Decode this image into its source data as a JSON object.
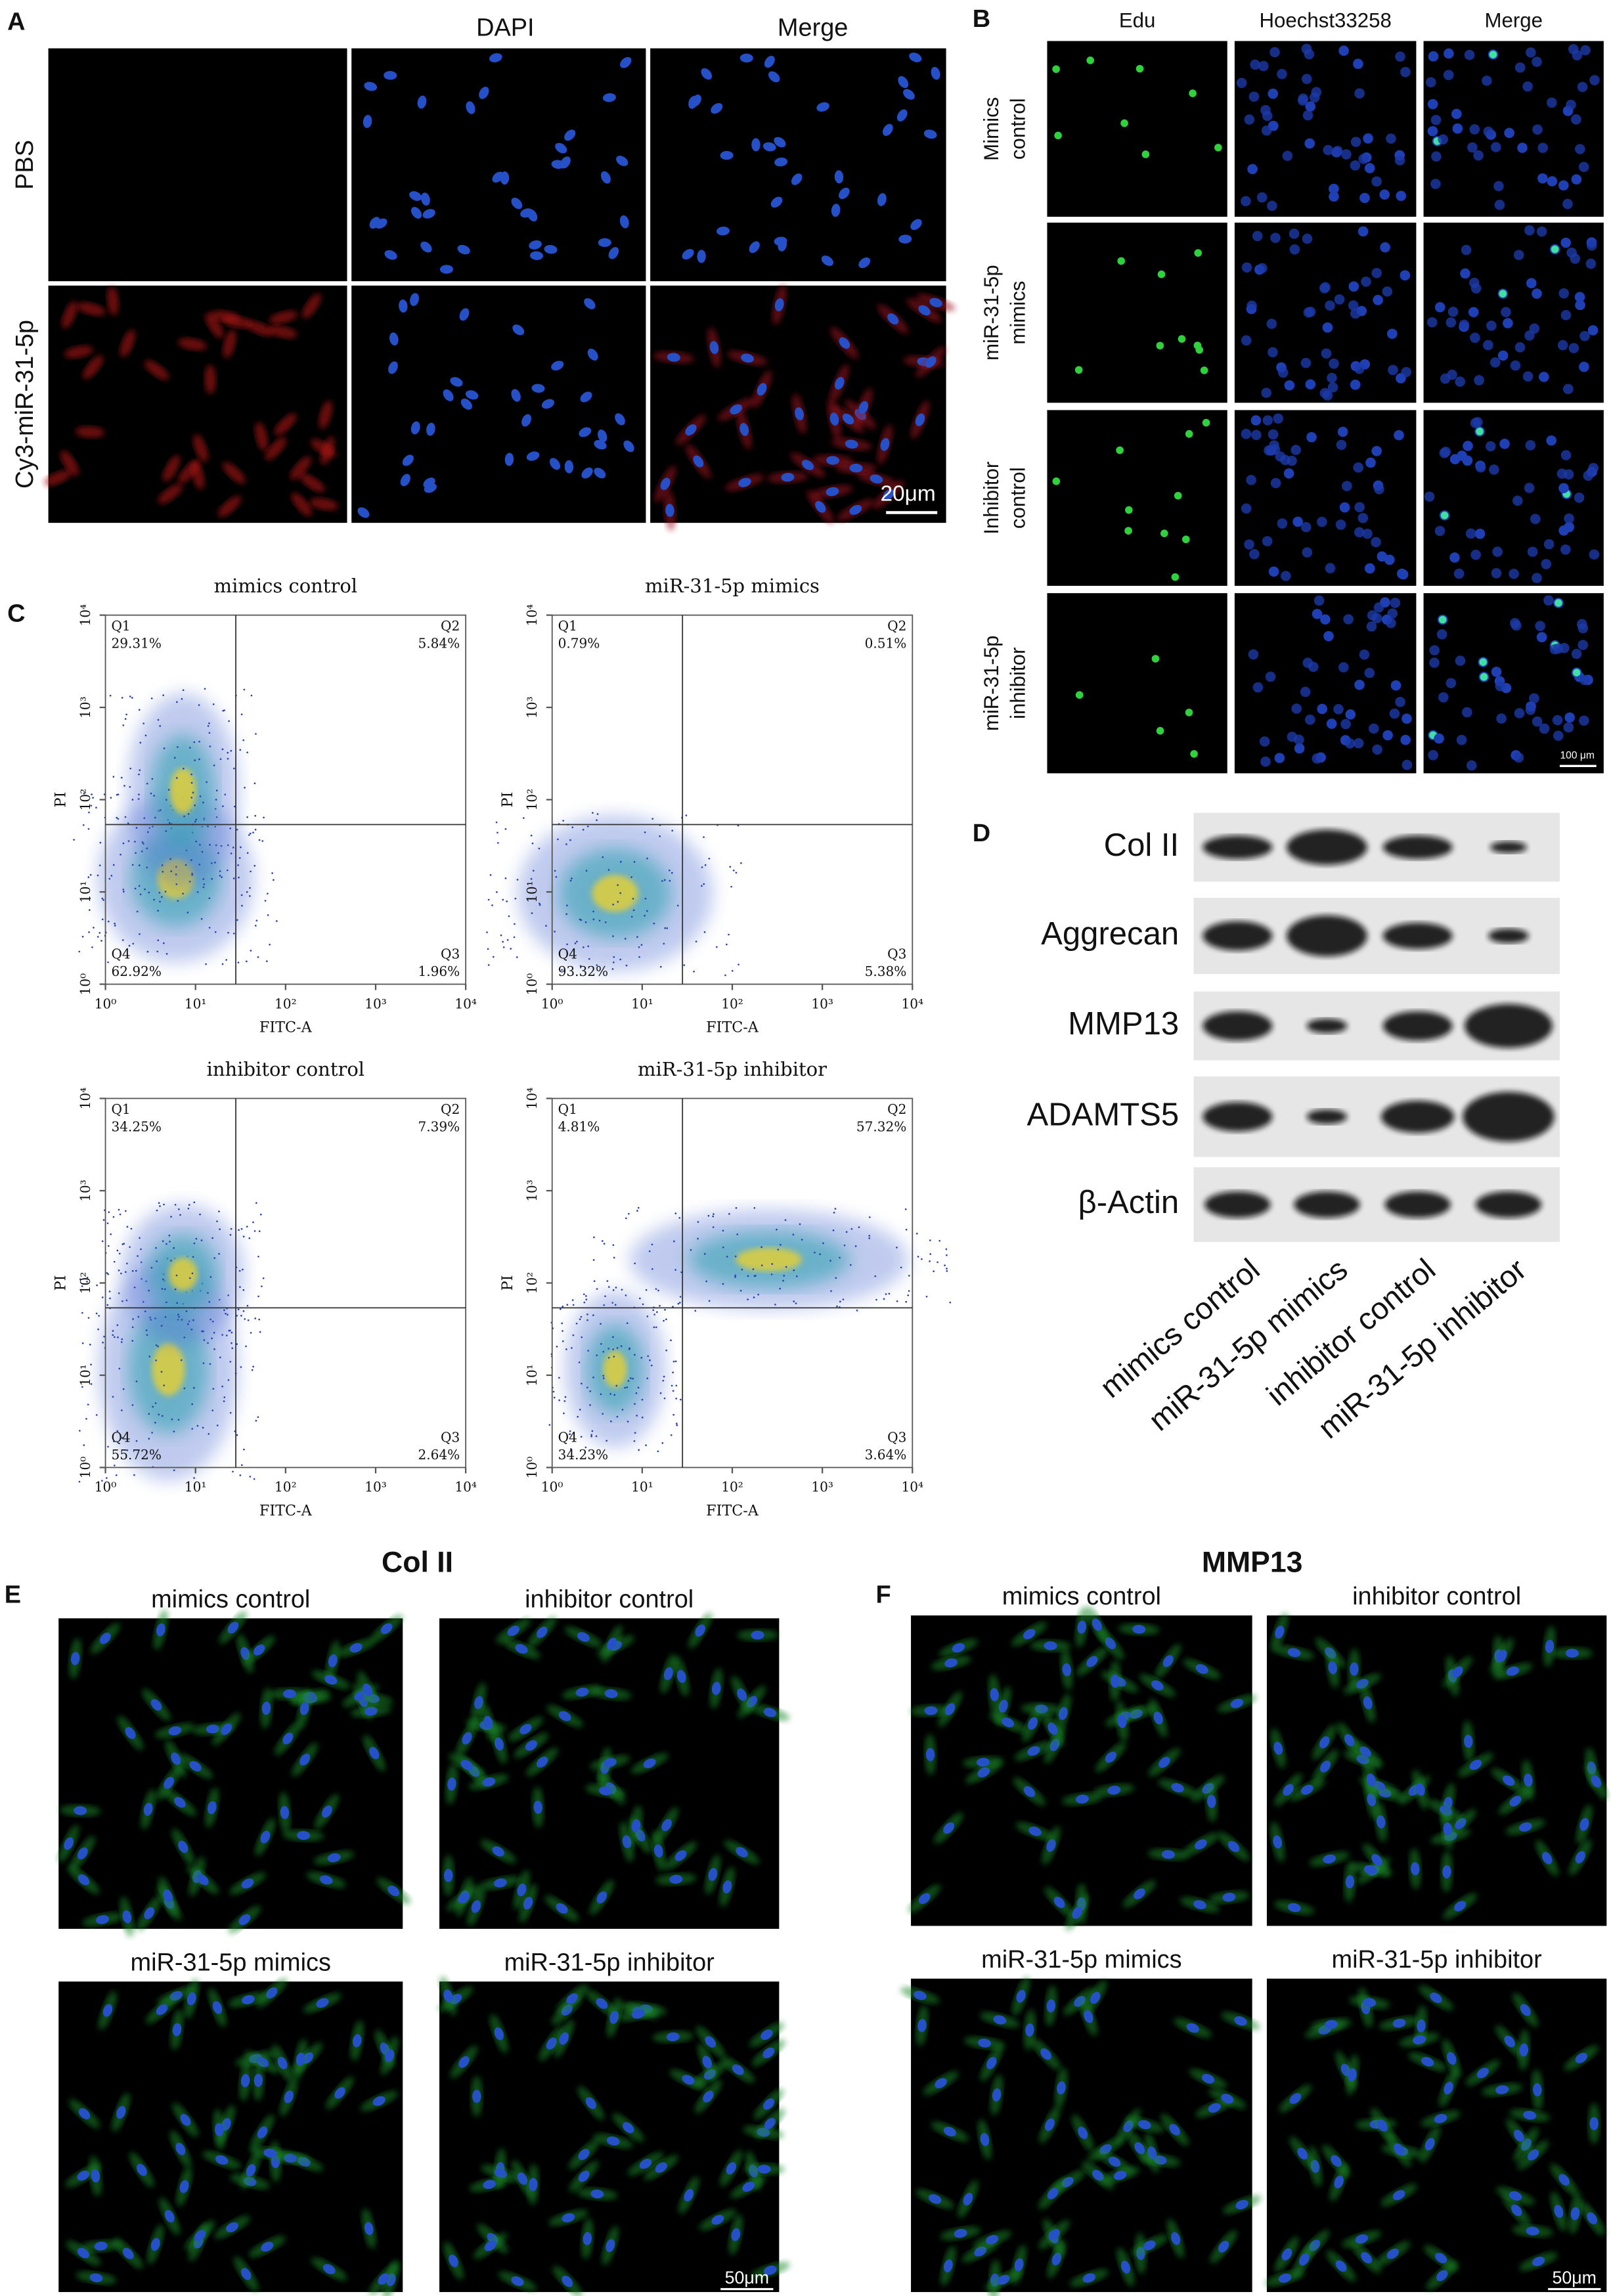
{
  "panel_a": {
    "label": "A",
    "columns": [
      "DAPI",
      "Merge"
    ],
    "rows": [
      "PBS",
      "Cy3-miR-31-5p"
    ],
    "scale_bar": "20μm"
  },
  "panel_b": {
    "label": "B",
    "columns": [
      "Edu",
      "Hoechst33258",
      "Merge"
    ],
    "rows": [
      [
        "Mimics",
        "control"
      ],
      [
        "miR-31-5p",
        "mimics"
      ],
      [
        "Inhibitor",
        "control"
      ],
      [
        "miR-31-5p",
        "inhibitor"
      ]
    ],
    "scale_bar": "100 μm"
  },
  "panel_c": {
    "label": "C",
    "x_label": "FITC-A",
    "y_label": "PI",
    "ticks": [
      "10⁰",
      "10¹",
      "10²",
      "10³",
      "10⁴"
    ],
    "plots": [
      {
        "title": "mimics control",
        "quadrants": [
          {
            "name": "Q1",
            "value": "29.31%"
          },
          {
            "name": "Q2",
            "value": "5.84%"
          },
          {
            "name": "Q3",
            "value": "1.96%"
          },
          {
            "name": "Q4",
            "value": "62.92%"
          }
        ]
      },
      {
        "title": "miR-31-5p mimics",
        "quadrants": [
          {
            "name": "Q1",
            "value": "0.79%"
          },
          {
            "name": "Q2",
            "value": "0.51%"
          },
          {
            "name": "Q3",
            "value": "5.38%"
          },
          {
            "name": "Q4",
            "value": "93.32%"
          }
        ]
      },
      {
        "title": "inhibitor control",
        "quadrants": [
          {
            "name": "Q1",
            "value": "34.25%"
          },
          {
            "name": "Q2",
            "value": "7.39%"
          },
          {
            "name": "Q3",
            "value": "2.64%"
          },
          {
            "name": "Q4",
            "value": "55.72%"
          }
        ]
      },
      {
        "title": "miR-31-5p inhibitor",
        "quadrants": [
          {
            "name": "Q1",
            "value": "4.81%"
          },
          {
            "name": "Q2",
            "value": "57.32%"
          },
          {
            "name": "Q3",
            "value": "3.64%"
          },
          {
            "name": "Q4",
            "value": "34.23%"
          }
        ]
      }
    ]
  },
  "panel_d": {
    "label": "D",
    "proteins": [
      "Col II",
      "Aggrecan",
      "MMP13",
      "ADAMTS5",
      "β-Actin"
    ],
    "samples": [
      "mimics control",
      "miR-31-5p mimics",
      "inhibitor control",
      "miR-31-5p inhibitor"
    ]
  },
  "panel_e": {
    "label": "E",
    "title": "Col II",
    "images": [
      "mimics control",
      "inhibitor control",
      "miR-31-5p mimics",
      "miR-31-5p inhibitor"
    ],
    "scale_bar": "50μm"
  },
  "panel_f": {
    "label": "F",
    "title": "MMP13",
    "images": [
      "mimics control",
      "inhibitor control",
      "miR-31-5p mimics",
      "miR-31-5p inhibitor"
    ],
    "scale_bar": "50μm"
  }
}
